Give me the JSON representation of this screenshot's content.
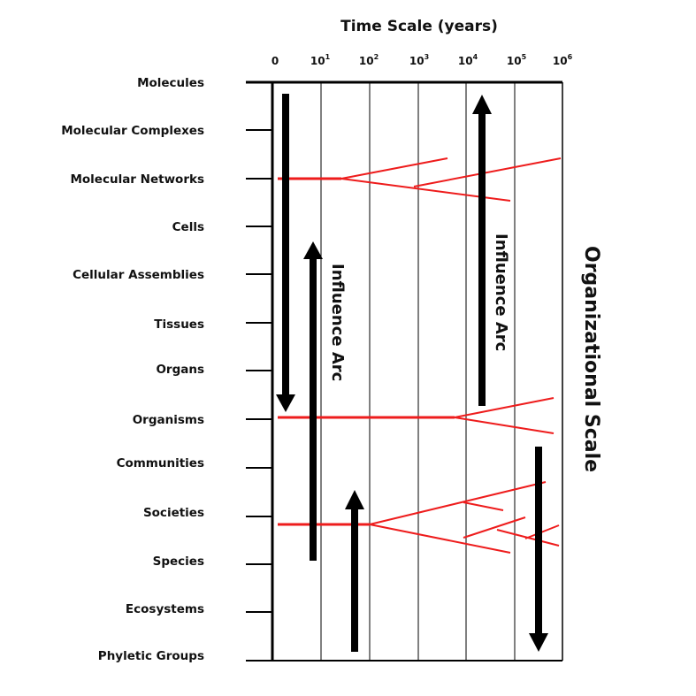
{
  "title": "Time Scale (years)",
  "right_label": "Organizational Scale",
  "arc_label": "Influence Arc",
  "time_ticks": [
    {
      "base": "0",
      "exp": ""
    },
    {
      "base": "10",
      "exp": "1"
    },
    {
      "base": "10",
      "exp": "2"
    },
    {
      "base": "10",
      "exp": "3"
    },
    {
      "base": "10",
      "exp": "4"
    },
    {
      "base": "10",
      "exp": "5"
    },
    {
      "base": "10",
      "exp": "6"
    }
  ],
  "levels": [
    "Molecules",
    "Molecular Complexes",
    "Molecular Networks",
    "Cells",
    "Cellular Assemblies",
    "Tissues",
    "Organs",
    "Organisms",
    "Communities",
    "Societies",
    "Species",
    "Ecosystems",
    "Phyletic Groups"
  ],
  "colors": {
    "branch": "#ee1c1c",
    "axis": "#000000",
    "arrow": "#000000"
  }
}
